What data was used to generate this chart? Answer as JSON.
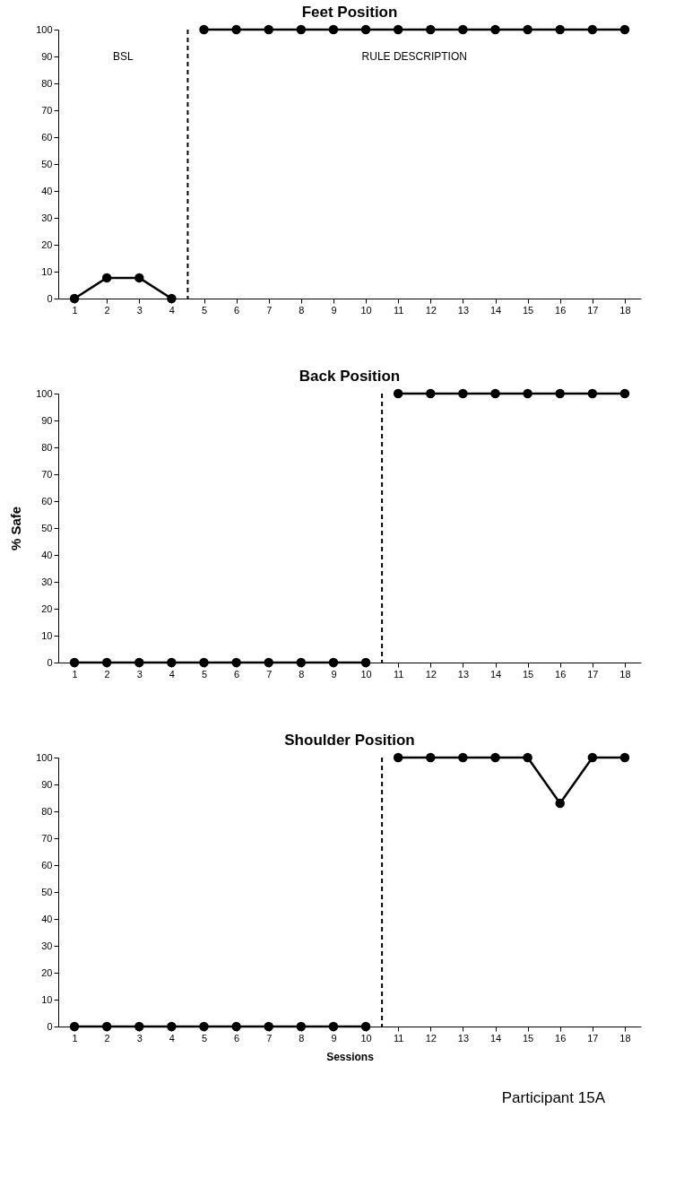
{
  "chart_data": [
    {
      "type": "line",
      "title": "Feet Position",
      "x": [
        1,
        2,
        3,
        4,
        5,
        6,
        7,
        8,
        9,
        10,
        11,
        12,
        13,
        14,
        15,
        16,
        17,
        18
      ],
      "series": [
        {
          "color": "#000000",
          "values": [
            0,
            7.7,
            7.7,
            0,
            null,
            null,
            null,
            null,
            null,
            null,
            null,
            null,
            null,
            null,
            null,
            null,
            null,
            null
          ]
        },
        {
          "color": "#000000",
          "values": [
            null,
            null,
            null,
            null,
            100,
            100,
            100,
            100,
            100,
            100,
            100,
            100,
            100,
            100,
            100,
            100,
            100,
            100
          ]
        }
      ],
      "xlim": [
        0.5,
        18.5
      ],
      "xticks": [
        1,
        2,
        3,
        4,
        5,
        6,
        7,
        8,
        9,
        10,
        11,
        12,
        13,
        14,
        15,
        16,
        17,
        18
      ],
      "ylim": [
        0,
        100
      ],
      "yticks": [
        0,
        10,
        20,
        30,
        40,
        50,
        60,
        70,
        80,
        90,
        100
      ],
      "grid": false,
      "marker": "circle",
      "line_style": "solid",
      "ref_lines": [
        {
          "axis": "x",
          "value": 4.5,
          "line_style": "dashed"
        }
      ],
      "annotations": [
        "BSL",
        "RULE DESCRIPTION"
      ]
    },
    {
      "type": "line",
      "title": "Back Position",
      "ylabel": "% Safe",
      "x": [
        1,
        2,
        3,
        4,
        5,
        6,
        7,
        8,
        9,
        10,
        11,
        12,
        13,
        14,
        15,
        16,
        17,
        18
      ],
      "series": [
        {
          "color": "#000000",
          "values": [
            0,
            0,
            0,
            0,
            0,
            0,
            0,
            0,
            0,
            0,
            null,
            null,
            null,
            null,
            null,
            null,
            null,
            null
          ]
        },
        {
          "color": "#000000",
          "values": [
            null,
            null,
            null,
            null,
            null,
            null,
            null,
            null,
            null,
            null,
            100,
            100,
            100,
            100,
            100,
            100,
            100,
            100
          ]
        }
      ],
      "xlim": [
        0.5,
        18.5
      ],
      "xticks": [
        1,
        2,
        3,
        4,
        5,
        6,
        7,
        8,
        9,
        10,
        11,
        12,
        13,
        14,
        15,
        16,
        17,
        18
      ],
      "ylim": [
        0,
        100
      ],
      "yticks": [
        0,
        10,
        20,
        30,
        40,
        50,
        60,
        70,
        80,
        90,
        100
      ],
      "grid": false,
      "marker": "circle",
      "line_style": "solid",
      "ref_lines": [
        {
          "axis": "x",
          "value": 10.5,
          "line_style": "dashed"
        }
      ]
    },
    {
      "type": "line",
      "title": "Shoulder Position",
      "xlabel": "Sessions",
      "x": [
        1,
        2,
        3,
        4,
        5,
        6,
        7,
        8,
        9,
        10,
        11,
        12,
        13,
        14,
        15,
        16,
        17,
        18
      ],
      "series": [
        {
          "color": "#000000",
          "values": [
            0,
            0,
            0,
            0,
            0,
            0,
            0,
            0,
            0,
            0,
            null,
            null,
            null,
            null,
            null,
            null,
            null,
            null
          ]
        },
        {
          "color": "#000000",
          "values": [
            null,
            null,
            null,
            null,
            null,
            null,
            null,
            null,
            null,
            null,
            100,
            100,
            100,
            100,
            100,
            83,
            100,
            100
          ]
        }
      ],
      "xlim": [
        0.5,
        18.5
      ],
      "xticks": [
        1,
        2,
        3,
        4,
        5,
        6,
        7,
        8,
        9,
        10,
        11,
        12,
        13,
        14,
        15,
        16,
        17,
        18
      ],
      "ylim": [
        0,
        100
      ],
      "yticks": [
        0,
        10,
        20,
        30,
        40,
        50,
        60,
        70,
        80,
        90,
        100
      ],
      "grid": false,
      "marker": "circle",
      "line_style": "solid",
      "ref_lines": [
        {
          "axis": "x",
          "value": 10.5,
          "line_style": "dashed"
        }
      ],
      "annotations": [
        "Participant 15A"
      ]
    }
  ]
}
